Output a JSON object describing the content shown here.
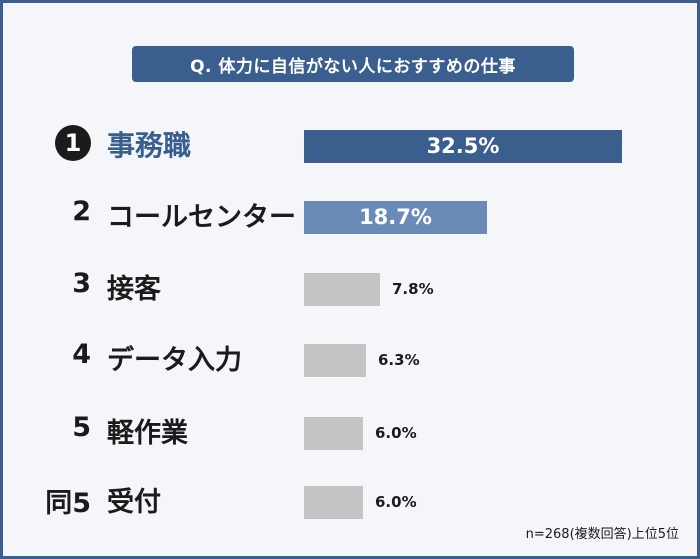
{
  "title": "Q. 体力に自信がない人におすすめの仕事",
  "note": "n=268(複数回答)上位5位",
  "colors": {
    "frame": "#3a5f8f",
    "bar_top": "#3a5f8f",
    "bar_second": "#6a8ab8",
    "bar_rest": "#c4c4c4"
  },
  "chart_data": {
    "type": "bar",
    "orientation": "horizontal",
    "title": "Q. 体力に自信がない人におすすめの仕事",
    "ranks": [
      "1",
      "2",
      "3",
      "4",
      "5",
      "同5"
    ],
    "categories": [
      "事務職",
      "コールセンター",
      "接客",
      "データ入力",
      "軽作業",
      "受付"
    ],
    "values": [
      32.5,
      18.7,
      7.8,
      6.3,
      6.0,
      6.0
    ],
    "value_labels": [
      "32.5%",
      "18.7%",
      "7.8%",
      "6.3%",
      "6.0%",
      "6.0%"
    ],
    "unit": "%",
    "xlim": [
      0,
      32.5
    ],
    "grid": false,
    "note": "n=268(複数回答)上位5位"
  }
}
